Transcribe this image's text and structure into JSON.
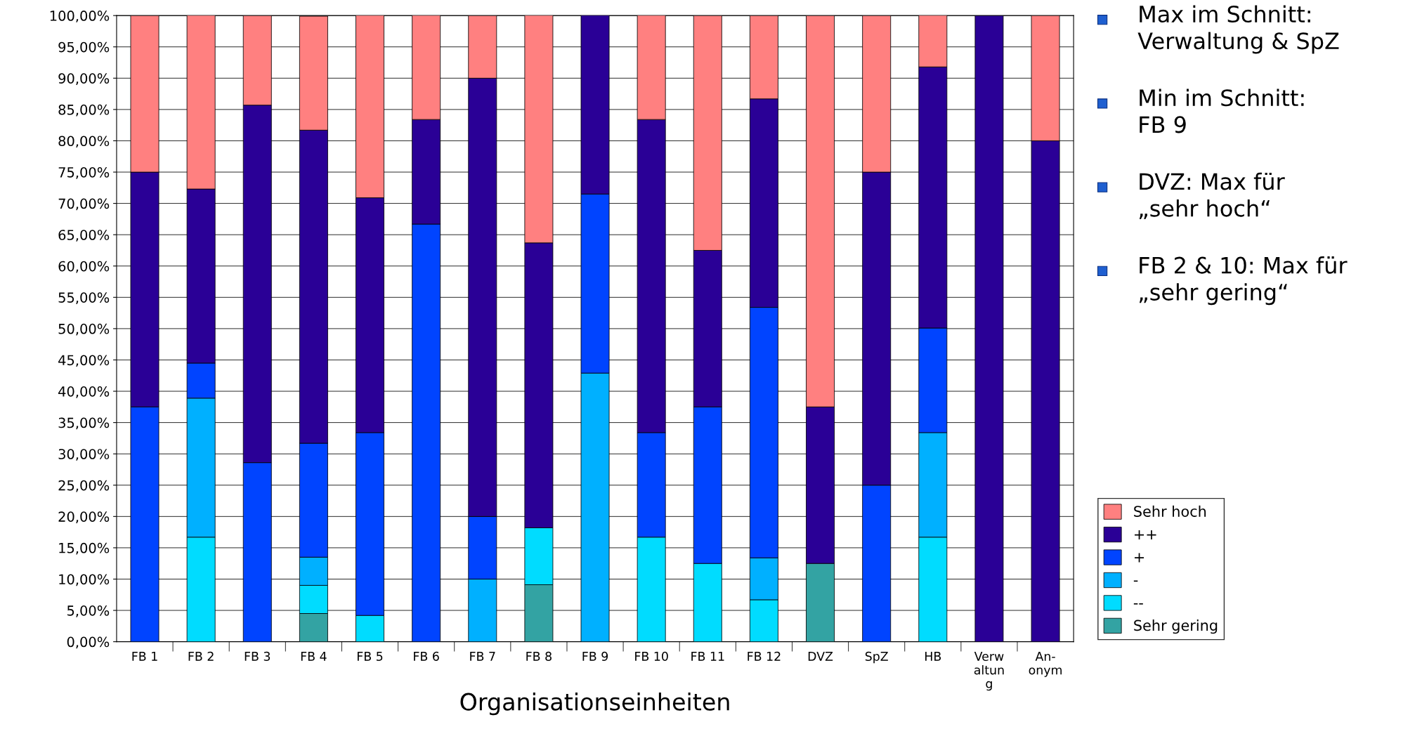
{
  "chart_data": {
    "type": "bar",
    "stacked": true,
    "xlabel": "Organisationseinheiten",
    "categories": [
      "FB 1",
      "FB 2",
      "FB 3",
      "FB 4",
      "FB 5",
      "FB 6",
      "FB 7",
      "FB 8",
      "FB 9",
      "FB 10",
      "FB 11",
      "FB 12",
      "DVZ",
      "SpZ",
      "HB",
      "Verw\naltun\ng",
      "An-\nonym"
    ],
    "series": [
      {
        "name": "Sehr gering",
        "color": "#33a3a3",
        "values": [
          null,
          null,
          null,
          4.5,
          null,
          null,
          null,
          9.1,
          null,
          null,
          null,
          null,
          12.5,
          null,
          null,
          null,
          null
        ]
      },
      {
        "name": "--",
        "color": "#00dcff",
        "values": [
          null,
          16.7,
          null,
          4.5,
          4.2,
          null,
          null,
          9.1,
          null,
          16.7,
          12.5,
          6.7,
          null,
          null,
          16.7,
          null,
          null
        ]
      },
      {
        "name": "-",
        "color": "#00b0ff",
        "values": [
          null,
          22.2,
          null,
          4.5,
          null,
          null,
          10,
          null,
          42.9,
          null,
          null,
          6.7,
          null,
          null,
          16.7,
          null,
          null
        ]
      },
      {
        "name": "+",
        "color": "#0044ff",
        "values": [
          37.5,
          5.6,
          28.6,
          18.2,
          29.2,
          66.7,
          10,
          null,
          28.6,
          16.7,
          25,
          40,
          null,
          25,
          16.7,
          null,
          null
        ]
      },
      {
        "name": "++",
        "color": "#2a0096",
        "values": [
          37.5,
          27.8,
          57.1,
          50,
          37.5,
          16.7,
          70,
          45.5,
          28.6,
          50,
          25,
          33.3,
          25,
          50,
          41.7,
          100,
          80
        ]
      },
      {
        "name": "Sehr hoch",
        "color": "#ff8080",
        "values": [
          25,
          27.8,
          14.3,
          18.2,
          29.2,
          16.7,
          10,
          36.4,
          null,
          16.7,
          37.5,
          13.3,
          62.5,
          25,
          8.3,
          null,
          20
        ]
      }
    ],
    "ylim": [
      0,
      100
    ],
    "yticks": [
      {
        "value": 0,
        "label": "0,00%"
      },
      {
        "value": 5,
        "label": "5,00%"
      },
      {
        "value": 10,
        "label": "10,00%"
      },
      {
        "value": 15,
        "label": "15,00%"
      },
      {
        "value": 20,
        "label": "20,00%"
      },
      {
        "value": 25,
        "label": "25,00%"
      },
      {
        "value": 30,
        "label": "30,00%"
      },
      {
        "value": 35,
        "label": "35,00%"
      },
      {
        "value": 40,
        "label": "40,00%"
      },
      {
        "value": 45,
        "label": "45,00%"
      },
      {
        "value": 50,
        "label": "50,00%"
      },
      {
        "value": 55,
        "label": "55,00%"
      },
      {
        "value": 60,
        "label": "60,00%"
      },
      {
        "value": 65,
        "label": "65,00%"
      },
      {
        "value": 70,
        "label": "70,00%"
      },
      {
        "value": 75,
        "label": "75,00%"
      },
      {
        "value": 80,
        "label": "80,00%"
      },
      {
        "value": 85,
        "label": "85,00%"
      },
      {
        "value": 90,
        "label": "90,00%"
      },
      {
        "value": 95,
        "label": "95,00%"
      },
      {
        "value": 100,
        "label": "100,00%"
      }
    ],
    "grid": "y",
    "legend": "bottom right",
    "annotations": [
      "Max im Schnitt:\nVerwaltung & SpZ",
      "Min im Schnitt:\nFB 9",
      "DVZ: Max für\n„sehr hoch“",
      "FB 2 & 10: Max für\n„sehr gering“"
    ]
  }
}
